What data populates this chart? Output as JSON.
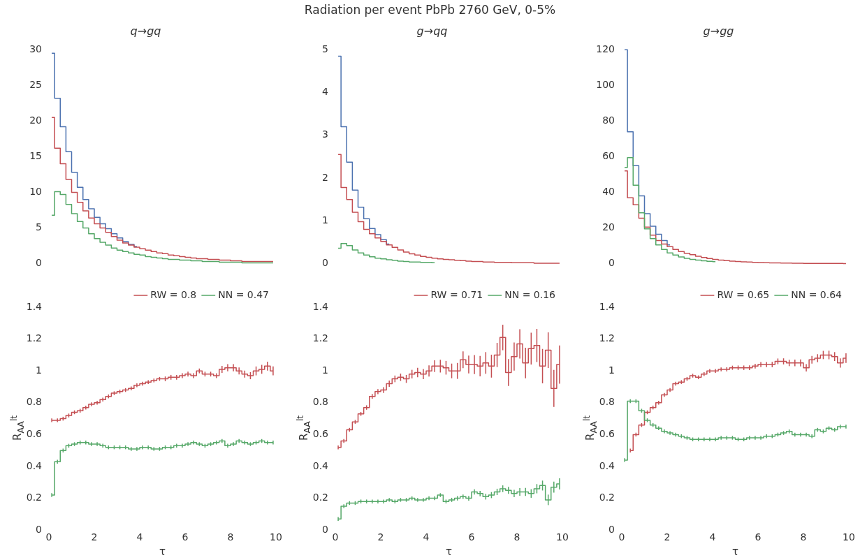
{
  "chart_data": [
    {
      "type": "step",
      "title": "q→gq",
      "annotations": [
        "Radiation per event PbPb 2760 GeV, 0-5%"
      ],
      "x": [
        0.125,
        0.375,
        0.625,
        0.875,
        1.125,
        1.375,
        1.625,
        1.875,
        2.125,
        2.375,
        2.625,
        2.875,
        3.125,
        3.375,
        3.625,
        3.875,
        4.125,
        4.375,
        4.625,
        4.875,
        5.125,
        5.375,
        5.625,
        5.875,
        6.125,
        6.375,
        6.625,
        6.875,
        7.125,
        7.375,
        7.625,
        7.875,
        8.125,
        8.375,
        8.625,
        8.875,
        9.125,
        9.375,
        9.625,
        9.875
      ],
      "xlim": [
        0,
        10
      ],
      "xticks": [
        0,
        2,
        4,
        6,
        8,
        10
      ],
      "ylim": [
        0,
        30
      ],
      "yticks": [
        0,
        5,
        10,
        15,
        20,
        25,
        30
      ],
      "tick_labels": "y",
      "series": [
        {
          "color": "#4c72b0",
          "values": [
            29.5,
            23.2,
            19.2,
            15.7,
            12.8,
            10.7,
            9.0,
            7.7,
            6.5,
            5.6,
            4.9,
            4.2,
            3.6,
            3.1,
            2.7,
            2.4,
            null,
            null,
            null,
            null,
            null,
            null,
            null,
            null,
            null,
            null,
            null,
            null,
            null,
            null,
            null,
            null,
            null,
            null,
            null,
            null,
            null,
            null,
            null,
            null
          ]
        },
        {
          "color": "#c44e52",
          "values": [
            20.5,
            16.2,
            14.0,
            11.8,
            10.0,
            8.6,
            7.4,
            6.4,
            5.6,
            5.0,
            4.4,
            3.8,
            3.3,
            2.9,
            2.6,
            2.3,
            2.1,
            1.9,
            1.7,
            1.5,
            1.4,
            1.2,
            1.1,
            1.0,
            0.9,
            0.8,
            0.7,
            0.7,
            0.6,
            0.6,
            0.5,
            0.5,
            0.4,
            0.4,
            0.3,
            0.3,
            0.3,
            0.3,
            0.3,
            0.3
          ]
        },
        {
          "color": "#55a868",
          "values": [
            6.8,
            10.1,
            9.7,
            8.3,
            7.0,
            5.9,
            5.0,
            4.2,
            3.5,
            3.0,
            2.6,
            2.2,
            1.9,
            1.7,
            1.5,
            1.3,
            1.2,
            1.0,
            0.9,
            0.8,
            0.7,
            0.6,
            0.6,
            0.5,
            0.5,
            0.4,
            0.4,
            0.3,
            0.3,
            0.3,
            0.2,
            0.2,
            0.2,
            0.2,
            0.1,
            0.1,
            0.1,
            0.1,
            0.1,
            0.1
          ]
        }
      ]
    },
    {
      "type": "step",
      "title": "g→qq",
      "x": [
        0.125,
        0.375,
        0.625,
        0.875,
        1.125,
        1.375,
        1.625,
        1.875,
        2.125,
        2.375,
        2.625,
        2.875,
        3.125,
        3.375,
        3.625,
        3.875,
        4.125,
        4.375,
        4.625,
        4.875,
        5.125,
        5.375,
        5.625,
        5.875,
        6.125,
        6.375,
        6.625,
        6.875,
        7.125,
        7.375,
        7.625,
        7.875,
        8.125,
        8.375,
        8.625,
        8.875,
        9.125,
        9.375,
        9.625,
        9.875
      ],
      "xlim": [
        0,
        10
      ],
      "xticks": [
        0,
        2,
        4,
        6,
        8,
        10
      ],
      "ylim": [
        0,
        5
      ],
      "yticks": [
        0,
        1,
        2,
        3,
        4,
        5
      ],
      "tick_labels": "y",
      "series": [
        {
          "color": "#4c72b0",
          "values": [
            4.85,
            3.2,
            2.37,
            1.72,
            1.32,
            1.05,
            0.82,
            0.68,
            0.56,
            0.46,
            null,
            null,
            null,
            null,
            null,
            null,
            null,
            null,
            null,
            null,
            null,
            null,
            null,
            null,
            null,
            null,
            null,
            null,
            null,
            null,
            null,
            null,
            null,
            null,
            null,
            null,
            null,
            null,
            null,
            null
          ]
        },
        {
          "color": "#c44e52",
          "values": [
            2.55,
            1.78,
            1.5,
            1.2,
            0.98,
            0.8,
            0.7,
            0.6,
            0.52,
            0.44,
            0.38,
            0.32,
            0.27,
            0.23,
            0.2,
            0.17,
            0.15,
            0.13,
            0.11,
            0.1,
            0.09,
            0.08,
            0.07,
            0.06,
            0.05,
            0.05,
            0.04,
            0.04,
            0.03,
            0.03,
            0.03,
            0.02,
            0.02,
            0.02,
            0.02,
            0.01,
            0.01,
            0.01,
            0.01,
            0.01
          ]
        },
        {
          "color": "#55a868",
          "values": [
            0.36,
            0.47,
            0.42,
            0.32,
            0.25,
            0.2,
            0.16,
            0.13,
            0.11,
            0.09,
            0.08,
            0.06,
            0.05,
            0.04,
            0.04,
            0.03,
            0.03,
            0.02,
            null,
            null,
            null,
            null,
            null,
            null,
            null,
            null,
            null,
            null,
            null,
            null,
            null,
            null,
            null,
            null,
            null,
            null,
            null,
            null,
            null,
            null
          ]
        }
      ]
    },
    {
      "type": "step",
      "title": "g→gg",
      "x": [
        0.125,
        0.375,
        0.625,
        0.875,
        1.125,
        1.375,
        1.625,
        1.875,
        2.125,
        2.375,
        2.625,
        2.875,
        3.125,
        3.375,
        3.625,
        3.875,
        4.125,
        4.375,
        4.625,
        4.875,
        5.125,
        5.375,
        5.625,
        5.875,
        6.125,
        6.375,
        6.625,
        6.875,
        7.125,
        7.375,
        7.625,
        7.875,
        8.125,
        8.375,
        8.625,
        8.875,
        9.125,
        9.375,
        9.625,
        9.875
      ],
      "xlim": [
        0,
        10
      ],
      "xticks": [
        0,
        2,
        4,
        6,
        8,
        10
      ],
      "ylim": [
        0,
        120
      ],
      "yticks": [
        0,
        20,
        40,
        60,
        80,
        100,
        120
      ],
      "tick_labels": "y",
      "series": [
        {
          "color": "#4c72b0",
          "values": [
            120,
            74,
            55,
            38,
            28,
            21,
            16.5,
            13,
            10.5,
            null,
            null,
            null,
            null,
            null,
            null,
            null,
            null,
            null,
            null,
            null,
            null,
            null,
            null,
            null,
            null,
            null,
            null,
            null,
            null,
            null,
            null,
            null,
            null,
            null,
            null,
            null,
            null,
            null,
            null,
            null
          ]
        },
        {
          "color": "#c44e52",
          "values": [
            52,
            37,
            33,
            25.5,
            20.5,
            16,
            13,
            11,
            9.5,
            8,
            6.8,
            5.8,
            5,
            4.2,
            3.5,
            2.9,
            2.4,
            2,
            1.7,
            1.4,
            1.2,
            1,
            0.9,
            0.7,
            0.6,
            0.5,
            0.4,
            0.4,
            0.3,
            0.3,
            0.2,
            0.2,
            0.1,
            0.1,
            0.1,
            0.1,
            0.1,
            0.1,
            0.1,
            0
          ]
        },
        {
          "color": "#55a868",
          "values": [
            54,
            59.5,
            44,
            28.5,
            19.5,
            14,
            10.5,
            8,
            6,
            4.8,
            3.8,
            3,
            2.4,
            2,
            1.6,
            1.3,
            1.1,
            null,
            null,
            null,
            null,
            null,
            null,
            null,
            null,
            null,
            null,
            null,
            null,
            null,
            null,
            null,
            null,
            null,
            null,
            null,
            null,
            null,
            null,
            null
          ]
        }
      ]
    },
    {
      "type": "step",
      "xlabel": "τ",
      "ylabel": "R$_{AA}$$^{lt}$",
      "legend": "top right",
      "x": [
        0.125,
        0.375,
        0.625,
        0.875,
        1.125,
        1.375,
        1.625,
        1.875,
        2.125,
        2.375,
        2.625,
        2.875,
        3.125,
        3.375,
        3.625,
        3.875,
        4.125,
        4.375,
        4.625,
        4.875,
        5.125,
        5.375,
        5.625,
        5.875,
        6.125,
        6.375,
        6.625,
        6.875,
        7.125,
        7.375,
        7.625,
        7.875,
        8.125,
        8.375,
        8.625,
        8.875,
        9.125,
        9.375,
        9.625,
        9.875
      ],
      "xlim": [
        0,
        10
      ],
      "xticks": [
        0,
        2,
        4,
        6,
        8,
        10
      ],
      "ylim": [
        0,
        1.4
      ],
      "yticks": [
        0,
        0.2,
        0.4,
        0.6,
        0.8,
        1,
        1.2,
        1.4
      ],
      "series": [
        {
          "name": "RW = 0.8",
          "color": "#c44e52",
          "values": [
            0.69,
            0.69,
            0.7,
            0.72,
            0.74,
            0.75,
            0.77,
            0.79,
            0.8,
            0.82,
            0.84,
            0.86,
            0.87,
            0.88,
            0.89,
            0.91,
            0.92,
            0.93,
            0.94,
            0.95,
            0.95,
            0.96,
            0.96,
            0.97,
            0.98,
            0.97,
            1.0,
            0.98,
            0.98,
            0.97,
            1.01,
            1.02,
            1.02,
            1.0,
            0.98,
            0.97,
            1.0,
            1.01,
            1.03,
            1.0
          ],
          "errors": [
            0.012,
            0.012,
            0.012,
            0.012,
            0.012,
            0.012,
            0.012,
            0.012,
            0.012,
            0.012,
            0.012,
            0.012,
            0.012,
            0.012,
            0.012,
            0.012,
            0.012,
            0.012,
            0.012,
            0.012,
            0.015,
            0.015,
            0.015,
            0.015,
            0.015,
            0.015,
            0.015,
            0.015,
            0.015,
            0.015,
            0.022,
            0.022,
            0.022,
            0.022,
            0.022,
            0.022,
            0.028,
            0.028,
            0.028,
            0.028
          ]
        },
        {
          "name": "NN = 0.47",
          "color": "#55a868",
          "values": [
            0.22,
            0.43,
            0.5,
            0.53,
            0.54,
            0.55,
            0.55,
            0.54,
            0.54,
            0.53,
            0.52,
            0.52,
            0.52,
            0.52,
            0.51,
            0.51,
            0.52,
            0.52,
            0.51,
            0.51,
            0.52,
            0.52,
            0.53,
            0.53,
            0.54,
            0.55,
            0.54,
            0.53,
            0.54,
            0.55,
            0.56,
            0.53,
            0.54,
            0.56,
            0.55,
            0.54,
            0.55,
            0.56,
            0.55,
            0.55
          ],
          "errors": [
            0.012,
            0.012,
            0.012,
            0.012,
            0.012,
            0.012,
            0.012,
            0.012,
            0.012,
            0.012,
            0.012,
            0.012,
            0.012,
            0.012,
            0.012,
            0.012,
            0.012,
            0.012,
            0.012,
            0.012,
            0.012,
            0.012,
            0.012,
            0.012,
            0.012,
            0.012,
            0.012,
            0.012,
            0.012,
            0.012,
            0.012,
            0.012,
            0.012,
            0.012,
            0.012,
            0.012,
            0.012,
            0.012,
            0.012,
            0.012
          ]
        }
      ]
    },
    {
      "type": "step",
      "xlabel": "τ",
      "ylabel": "R$_{AA}$$^{lt}$",
      "legend": "top right",
      "x": [
        0.125,
        0.375,
        0.625,
        0.875,
        1.125,
        1.375,
        1.625,
        1.875,
        2.125,
        2.375,
        2.625,
        2.875,
        3.125,
        3.375,
        3.625,
        3.875,
        4.125,
        4.375,
        4.625,
        4.875,
        5.125,
        5.375,
        5.625,
        5.875,
        6.125,
        6.375,
        6.625,
        6.875,
        7.125,
        7.375,
        7.625,
        7.875,
        8.125,
        8.375,
        8.625,
        8.875,
        9.125,
        9.375,
        9.625,
        9.875
      ],
      "xlim": [
        0,
        10
      ],
      "xticks": [
        0,
        2,
        4,
        6,
        8,
        10
      ],
      "ylim": [
        0,
        1.4
      ],
      "yticks": [
        0,
        0.2,
        0.4,
        0.6,
        0.8,
        1,
        1.2,
        1.4
      ],
      "series": [
        {
          "name": "RW = 0.71",
          "color": "#c44e52",
          "values": [
            0.52,
            0.56,
            0.63,
            0.68,
            0.73,
            0.77,
            0.84,
            0.87,
            0.88,
            0.92,
            0.95,
            0.96,
            0.95,
            0.98,
            0.99,
            0.98,
            1.0,
            1.03,
            1.03,
            1.02,
            1.0,
            1.0,
            1.07,
            1.04,
            1.04,
            1.03,
            1.05,
            1.03,
            1.1,
            1.21,
            0.99,
            1.09,
            1.17,
            1.05,
            1.14,
            1.16,
            1.03,
            1.13,
            0.89,
            1.04
          ],
          "errors": [
            0.012,
            0.012,
            0.012,
            0.012,
            0.012,
            0.014,
            0.015,
            0.016,
            0.018,
            0.02,
            0.021,
            0.023,
            0.025,
            0.027,
            0.03,
            0.032,
            0.035,
            0.037,
            0.04,
            0.043,
            0.046,
            0.05,
            0.053,
            0.056,
            0.06,
            0.064,
            0.068,
            0.072,
            0.076,
            0.08,
            0.084,
            0.088,
            0.092,
            0.096,
            0.1,
            0.104,
            0.108,
            0.112,
            0.116,
            0.12
          ]
        },
        {
          "name": "NN = 0.16",
          "color": "#55a868",
          "values": [
            0.07,
            0.15,
            0.17,
            0.17,
            0.18,
            0.18,
            0.18,
            0.18,
            0.18,
            0.19,
            0.18,
            0.19,
            0.19,
            0.2,
            0.19,
            0.19,
            0.2,
            0.2,
            0.22,
            0.18,
            0.19,
            0.2,
            0.21,
            0.2,
            0.24,
            0.23,
            0.21,
            0.22,
            0.24,
            0.26,
            0.25,
            0.23,
            0.24,
            0.24,
            0.23,
            0.26,
            0.28,
            0.19,
            0.27,
            0.29
          ],
          "errors": [
            0.012,
            0.012,
            0.012,
            0.012,
            0.012,
            0.012,
            0.012,
            0.012,
            0.012,
            0.012,
            0.012,
            0.012,
            0.012,
            0.012,
            0.012,
            0.012,
            0.012,
            0.012,
            0.012,
            0.012,
            0.013,
            0.014,
            0.014,
            0.015,
            0.016,
            0.017,
            0.018,
            0.019,
            0.02,
            0.021,
            0.022,
            0.023,
            0.024,
            0.025,
            0.027,
            0.029,
            0.031,
            0.033,
            0.035,
            0.035
          ]
        }
      ]
    },
    {
      "type": "step",
      "xlabel": "τ",
      "ylabel": "R$_{AA}$$^{lt}$",
      "legend": "top right",
      "x": [
        0.125,
        0.375,
        0.625,
        0.875,
        1.125,
        1.375,
        1.625,
        1.875,
        2.125,
        2.375,
        2.625,
        2.875,
        3.125,
        3.375,
        3.625,
        3.875,
        4.125,
        4.375,
        4.625,
        4.875,
        5.125,
        5.375,
        5.625,
        5.875,
        6.125,
        6.375,
        6.625,
        6.875,
        7.125,
        7.375,
        7.625,
        7.875,
        8.125,
        8.375,
        8.625,
        8.875,
        9.125,
        9.375,
        9.625,
        9.875
      ],
      "xlim": [
        0,
        10
      ],
      "xticks": [
        0,
        2,
        4,
        6,
        8,
        10
      ],
      "ylim": [
        0,
        1.4
      ],
      "yticks": [
        0,
        0.2,
        0.4,
        0.6,
        0.8,
        1,
        1.2,
        1.4
      ],
      "series": [
        {
          "name": "RW = 0.65",
          "color": "#c44e52",
          "values": [
            null,
            0.5,
            0.6,
            0.66,
            0.74,
            0.77,
            0.8,
            0.85,
            0.88,
            0.92,
            0.93,
            0.95,
            0.97,
            0.96,
            0.98,
            1.0,
            1.0,
            1.01,
            1.01,
            1.02,
            1.02,
            1.02,
            1.02,
            1.03,
            1.04,
            1.04,
            1.04,
            1.06,
            1.06,
            1.05,
            1.05,
            1.05,
            1.02,
            1.07,
            1.08,
            1.1,
            1.1,
            1.09,
            1.05,
            1.08
          ],
          "errors": [
            null,
            0.012,
            0.012,
            0.012,
            0.012,
            0.012,
            0.012,
            0.012,
            0.012,
            0.012,
            0.012,
            0.012,
            0.012,
            0.012,
            0.012,
            0.012,
            0.012,
            0.012,
            0.013,
            0.013,
            0.014,
            0.014,
            0.015,
            0.015,
            0.016,
            0.016,
            0.017,
            0.018,
            0.019,
            0.02,
            0.021,
            0.022,
            0.023,
            0.024,
            0.025,
            0.026,
            0.027,
            0.028,
            0.029,
            0.03
          ]
        },
        {
          "name": "NN = 0.64",
          "color": "#55a868",
          "values": [
            0.44,
            0.81,
            0.81,
            0.75,
            0.69,
            0.66,
            0.64,
            0.62,
            0.61,
            0.6,
            0.59,
            0.58,
            0.57,
            0.57,
            0.57,
            0.57,
            0.57,
            0.58,
            0.58,
            0.58,
            0.57,
            0.57,
            0.58,
            0.58,
            0.58,
            0.59,
            0.59,
            0.6,
            0.61,
            0.62,
            0.6,
            0.6,
            0.6,
            0.59,
            0.63,
            0.62,
            0.64,
            0.63,
            0.65,
            0.65
          ],
          "errors": [
            0.012,
            0.012,
            0.012,
            0.012,
            0.012,
            0.012,
            0.012,
            0.012,
            0.012,
            0.012,
            0.012,
            0.012,
            0.012,
            0.012,
            0.012,
            0.012,
            0.012,
            0.012,
            0.012,
            0.012,
            0.012,
            0.012,
            0.012,
            0.012,
            0.012,
            0.012,
            0.012,
            0.012,
            0.012,
            0.012,
            0.012,
            0.012,
            0.012,
            0.012,
            0.012,
            0.012,
            0.012,
            0.012,
            0.012,
            0.012
          ]
        }
      ]
    }
  ]
}
